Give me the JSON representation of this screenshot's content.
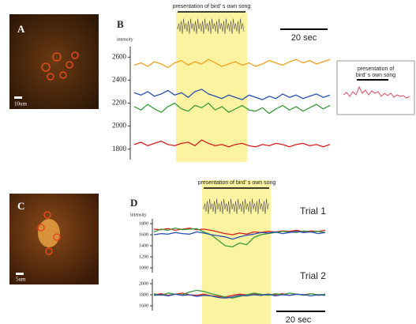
{
  "figure": {
    "panel_labels": [
      "A",
      "B",
      "C",
      "D"
    ],
    "scale_bar_a": "10um",
    "scale_bar_c": "5um",
    "inset_lines": [
      "presentation of",
      "bird' s own song"
    ]
  },
  "chart_data": [
    {
      "type": "line",
      "y_label": "intensity",
      "annotations": [
        "presentation of bird' s own song",
        "20 sec"
      ],
      "ylim": [
        1750,
        2650
      ],
      "yticks": [
        1800,
        2000,
        2200,
        2400,
        2600
      ],
      "series": [
        {
          "color": "#f0a020",
          "values": [
            2530,
            2550,
            2520,
            2560,
            2540,
            2510,
            2550,
            2570,
            2530,
            2560,
            2540,
            2580,
            2550,
            2520,
            2540,
            2560,
            2530,
            2550,
            2520,
            2540,
            2570,
            2550,
            2530,
            2560,
            2580,
            2550,
            2570,
            2540,
            2560,
            2580
          ]
        },
        {
          "color": "#2a4fb0",
          "values": [
            2290,
            2270,
            2300,
            2260,
            2280,
            2310,
            2270,
            2290,
            2250,
            2300,
            2320,
            2280,
            2260,
            2240,
            2270,
            2250,
            2230,
            2270,
            2250,
            2230,
            2260,
            2240,
            2280,
            2250,
            2270,
            2240,
            2260,
            2280,
            2250,
            2270
          ]
        },
        {
          "color": "#3a9a3a",
          "values": [
            2170,
            2140,
            2190,
            2150,
            2120,
            2170,
            2200,
            2150,
            2130,
            2180,
            2160,
            2200,
            2140,
            2170,
            2120,
            2150,
            2180,
            2140,
            2130,
            2160,
            2110,
            2150,
            2180,
            2140,
            2170,
            2130,
            2160,
            2190,
            2150,
            2180
          ]
        },
        {
          "color": "#d82020",
          "values": [
            1840,
            1860,
            1830,
            1850,
            1870,
            1840,
            1830,
            1850,
            1860,
            1830,
            1880,
            1850,
            1830,
            1840,
            1820,
            1840,
            1850,
            1830,
            1820,
            1840,
            1830,
            1850,
            1840,
            1820,
            1840,
            1850,
            1830,
            1840,
            1820,
            1840
          ]
        }
      ]
    },
    {
      "type": "line",
      "title": "Trial 1",
      "y_label": "intensity",
      "annotations": [
        "presentation of bird' s own song"
      ],
      "ylim": [
        1000,
        1800
      ],
      "yticks": [
        1000,
        1200,
        1400,
        1600,
        1800
      ],
      "series": [
        {
          "color": "#d82020",
          "values": [
            1700,
            1690,
            1710,
            1680,
            1700,
            1720,
            1690,
            1700,
            1680,
            1650,
            1620,
            1600,
            1630,
            1610,
            1650,
            1640,
            1660,
            1650,
            1670,
            1660,
            1680,
            1650,
            1670,
            1660,
            1680
          ]
        },
        {
          "color": "#3a9a3a",
          "values": [
            1650,
            1700,
            1680,
            1720,
            1690,
            1700,
            1710,
            1650,
            1600,
            1500,
            1400,
            1380,
            1450,
            1420,
            1550,
            1600,
            1620,
            1640,
            1660,
            1650,
            1640,
            1670,
            1650,
            1660,
            1640
          ]
        },
        {
          "color": "#2a4fb0",
          "values": [
            1600,
            1620,
            1610,
            1640,
            1620,
            1610,
            1650,
            1630,
            1600,
            1580,
            1560,
            1520,
            1560,
            1590,
            1610,
            1640,
            1630,
            1650,
            1620,
            1640,
            1660,
            1640,
            1650,
            1620,
            1640
          ]
        }
      ]
    },
    {
      "type": "line",
      "title": "Trial 2",
      "annotations": [
        "20 sec"
      ],
      "ylim": [
        1600,
        2000
      ],
      "yticks": [
        1600,
        1800,
        2000
      ],
      "series": [
        {
          "color": "#d82020",
          "values": [
            1800,
            1820,
            1790,
            1810,
            1830,
            1800,
            1790,
            1810,
            1780,
            1770,
            1760,
            1790,
            1810,
            1800,
            1820,
            1790,
            1810,
            1800,
            1820,
            1790,
            1810,
            1800,
            1820,
            1790,
            1810
          ]
        },
        {
          "color": "#3a9a3a",
          "values": [
            1820,
            1790,
            1830,
            1810,
            1800,
            1850,
            1880,
            1860,
            1820,
            1790,
            1760,
            1740,
            1770,
            1800,
            1830,
            1810,
            1790,
            1820,
            1800,
            1830,
            1810,
            1790,
            1820,
            1800,
            1810
          ]
        },
        {
          "color": "#2a4fb0",
          "values": [
            1790,
            1800,
            1780,
            1810,
            1790,
            1800,
            1770,
            1790,
            1780,
            1750,
            1740,
            1760,
            1790,
            1780,
            1800,
            1790,
            1810,
            1780,
            1800,
            1790,
            1810,
            1800,
            1780,
            1800,
            1790
          ]
        }
      ]
    }
  ]
}
